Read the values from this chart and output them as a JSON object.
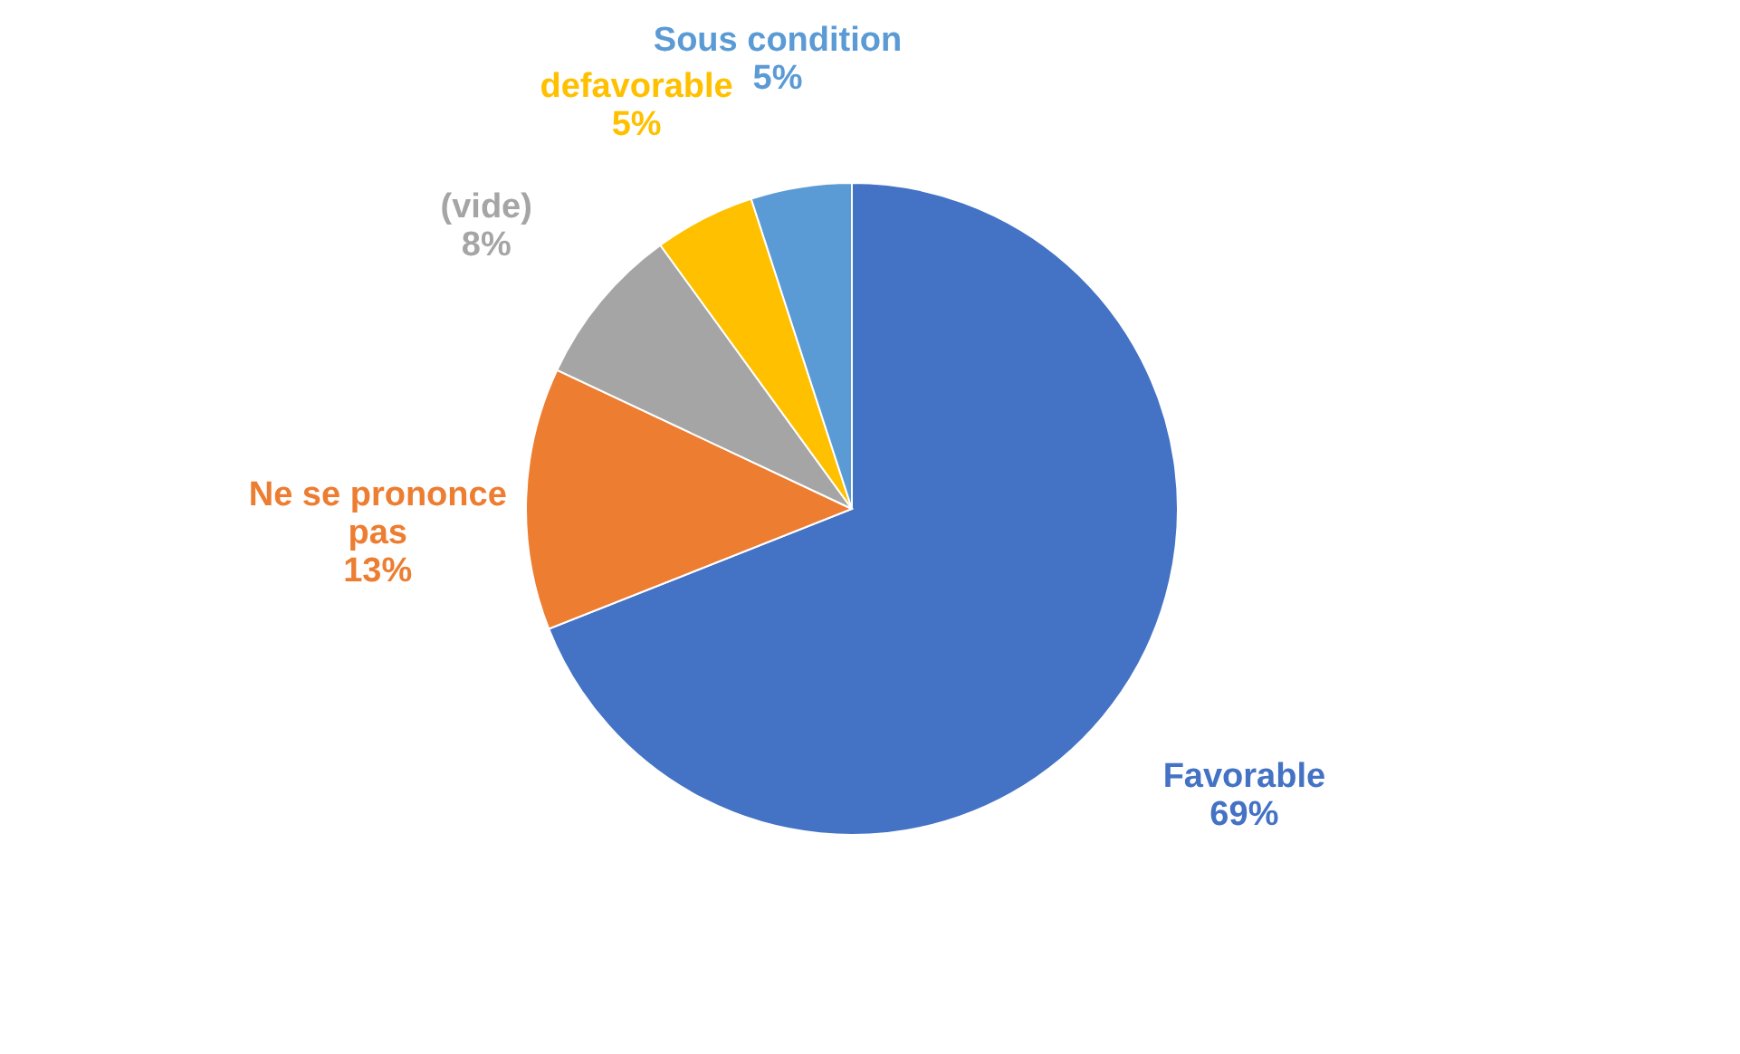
{
  "chart_data": {
    "type": "pie",
    "categories": [
      "Favorable",
      "Ne se prononce pas",
      "(vide)",
      "defavorable",
      "Sous condition"
    ],
    "values": [
      69,
      13,
      8,
      5,
      5
    ],
    "colors": [
      "#4472c4",
      "#ed7d31",
      "#a5a5a5",
      "#ffc000",
      "#5b9bd5"
    ],
    "value_labels": [
      "69%",
      "13%",
      "8%",
      "5%",
      "5%"
    ],
    "legend": false
  }
}
